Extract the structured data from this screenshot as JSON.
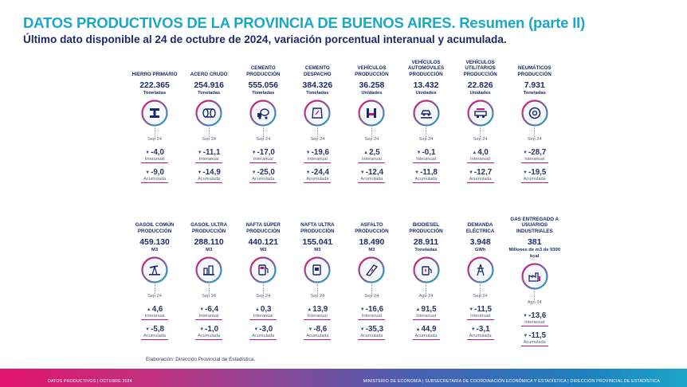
{
  "title": "DATOS PRODUCTIVOS DE LA PROVINCIA DE BUENOS AIRES. Resumen (parte II)",
  "subtitle": "Último dato disponible al 24 de octubre de 2024, variación porcentual interanual y acumulada.",
  "colors": {
    "title": "#1ba8c6",
    "navy": "#1b2a6b",
    "magenta": "#c2187a",
    "ring_from": "#e2136e",
    "ring_to": "#1ba8c6"
  },
  "label_interanual": "Interanual",
  "label_acumulada": "Acumulada",
  "row1": [
    {
      "name": "HIERRO PRIMARIO",
      "value": "222.365",
      "unit": "Toneladas",
      "icon": "iron-beam-icon",
      "date": "Sep 24",
      "interanual": "-4,0",
      "acumulada": "-9,0",
      "dir_i": "down",
      "dir_a": "down"
    },
    {
      "name": "ACERO CRUDO",
      "value": "254.916",
      "unit": "Toneladas",
      "icon": "steel-pipe-icon",
      "date": "Sep 24",
      "interanual": "-11,1",
      "acumulada": "-14,9",
      "dir_i": "down",
      "dir_a": "down"
    },
    {
      "name": "CEMENTO PRODUCCIÓN",
      "value": "555.056",
      "unit": "Toneladas",
      "icon": "cement-mixer-icon",
      "date": "Sep 24",
      "interanual": "-17,0",
      "acumulada": "-25,0",
      "dir_i": "down",
      "dir_a": "down"
    },
    {
      "name": "CEMENTO DESPACHO",
      "value": "384.326",
      "unit": "Toneladas",
      "icon": "cement-bag-icon",
      "date": "Sep 24",
      "interanual": "-19,6",
      "acumulada": "-24,4",
      "dir_i": "down",
      "dir_a": "down"
    },
    {
      "name": "VEHÍCULOS PRODUCCIÓN",
      "value": "36.258",
      "unit": "Unidades",
      "icon": "vehicle-assembly-icon",
      "date": "Sep 24",
      "interanual": "2,5",
      "acumulada": "-12,4",
      "dir_i": "up",
      "dir_a": "down"
    },
    {
      "name": "VEHÍCULOS AUTOMÓVILES PRODUCCIÓN",
      "value": "13.432",
      "unit": "Unidades",
      "icon": "car-lift-icon",
      "date": "Sep 24",
      "interanual": "-0,1",
      "acumulada": "-11,8",
      "dir_i": "down",
      "dir_a": "down"
    },
    {
      "name": "VEHÍCULOS UTILITARIOS PRODUCCIÓN",
      "value": "22.826",
      "unit": "Unidades",
      "icon": "utility-vehicle-icon",
      "date": "Sep 24",
      "interanual": "4,0",
      "acumulada": "-12,7",
      "dir_i": "up",
      "dir_a": "down"
    },
    {
      "name": "NEUMÁTICOS PRODUCCIÓN",
      "value": "7.931",
      "unit": "Toneladas",
      "icon": "tire-icon",
      "date": "Sep 24",
      "interanual": "-28,7",
      "acumulada": "-19,5",
      "dir_i": "down",
      "dir_a": "down"
    }
  ],
  "row2": [
    {
      "name": "GASOIL COMÚN PRODUCCIÓN",
      "value": "459.130",
      "unit": "M3",
      "icon": "oil-pump-icon",
      "date": "Sep 24",
      "interanual": "4,6",
      "acumulada": "-5,8",
      "dir_i": "up",
      "dir_a": "down"
    },
    {
      "name": "GASOIL ULTRA PRODUCCIÓN",
      "value": "288.110",
      "unit": "M3",
      "icon": "refinery-icon",
      "date": "Sep 24",
      "interanual": "-6,4",
      "acumulada": "-1,0",
      "dir_i": "down",
      "dir_a": "down"
    },
    {
      "name": "NAFTA SÚPER PRODUCCIÓN",
      "value": "440.121",
      "unit": "M3",
      "icon": "fuel-pump-icon",
      "date": "Sep 24",
      "interanual": "0,3",
      "acumulada": "-3,0",
      "dir_i": "up",
      "dir_a": "down"
    },
    {
      "name": "NAFTA ULTRA PRODUCCIÓN",
      "value": "155.041",
      "unit": "M3",
      "icon": "gas-station-icon",
      "date": "Sep 24",
      "interanual": "13,9",
      "acumulada": "-8,6",
      "dir_i": "up",
      "dir_a": "down"
    },
    {
      "name": "ASFALTO PRODUCCIÓN",
      "value": "18.490",
      "unit": "M3",
      "icon": "road-icon",
      "date": "Sep 24",
      "interanual": "-16,6",
      "acumulada": "-35,3",
      "dir_i": "down",
      "dir_a": "down"
    },
    {
      "name": "BIODIESEL PRODUCCIÓN",
      "value": "28.911",
      "unit": "Toneladas",
      "icon": "bio-fuel-icon",
      "date": "Ago 24",
      "interanual": "91,5",
      "acumulada": "44,9",
      "dir_i": "up",
      "dir_a": "up"
    },
    {
      "name": "DEMANDA ELÉCTRICA",
      "value": "3.948",
      "unit": "GWh",
      "icon": "power-tower-icon",
      "date": "Sep 24",
      "interanual": "-11,5",
      "acumulada": "-3,1",
      "dir_i": "down",
      "dir_a": "down"
    },
    {
      "name": "GAS ENTREGADO A USUARIOS INDUSTRIALES",
      "value": "381",
      "unit": "Millones de m3 de 9300 kcal",
      "icon": "factory-icon",
      "date": "Ago 24",
      "interanual": "-13,6",
      "acumulada": "-11,5",
      "dir_i": "down",
      "dir_a": "down"
    }
  ],
  "credit": "Elaboración: Dirección Provincial de Estadística.",
  "footer_left": "DATOS PRODUCTIVOS | OCTUBRE 2024",
  "footer_right": "MINISTERIO DE ECONOMÍA | SUBSECRETARÍA DE COORDINACIÓN ECONÓMICA Y ESTADÍSTICA | DIRECCIÓN PROVINCIAL DE ESTADÍSTICA"
}
